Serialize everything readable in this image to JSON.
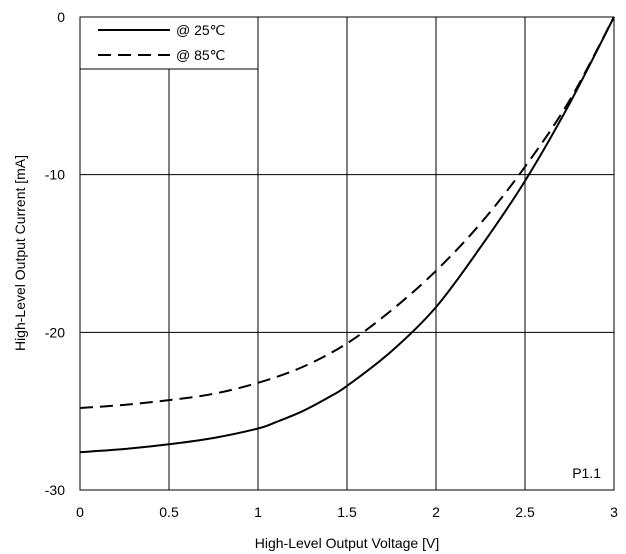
{
  "chart_data": {
    "type": "line",
    "title": "",
    "xlabel": "High-Level Output Voltage [V]",
    "ylabel": "High-Level Output Current [mA]",
    "xlim": [
      0,
      3
    ],
    "ylim": [
      -30,
      0
    ],
    "x_ticks": [
      0,
      0.5,
      1,
      1.5,
      2,
      2.5,
      3
    ],
    "x_tick_labels": [
      "0",
      "0.5",
      "1",
      "1.5",
      "2",
      "2.5",
      "3"
    ],
    "y_ticks": [
      0,
      -10,
      -20,
      -30
    ],
    "y_tick_labels": [
      "0",
      "-10",
      "-20",
      "-30"
    ],
    "grid": true,
    "legend_position": "top-left",
    "annotation": "P1.1",
    "series": [
      {
        "name": "@ 25℃",
        "line_style": "solid",
        "color": "#000000",
        "x": [
          0,
          0.25,
          0.5,
          0.75,
          1.0,
          1.1,
          1.25,
          1.4,
          1.5,
          1.75,
          2.0,
          2.25,
          2.5,
          2.75,
          3.0
        ],
        "y": [
          -27.6,
          -27.4,
          -27.1,
          -26.7,
          -26.1,
          -25.7,
          -25.0,
          -24.1,
          -23.4,
          -21.2,
          -18.4,
          -14.6,
          -10.4,
          -5.5,
          0
        ]
      },
      {
        "name": "@ 85℃",
        "line_style": "dashed",
        "color": "#000000",
        "x": [
          0,
          0.25,
          0.5,
          0.75,
          1.0,
          1.25,
          1.5,
          1.75,
          2.0,
          2.25,
          2.5,
          2.75,
          3.0
        ],
        "y": [
          -24.8,
          -24.6,
          -24.3,
          -23.9,
          -23.2,
          -22.2,
          -20.7,
          -18.6,
          -16.1,
          -13.1,
          -9.5,
          -5.3,
          0
        ]
      }
    ]
  }
}
